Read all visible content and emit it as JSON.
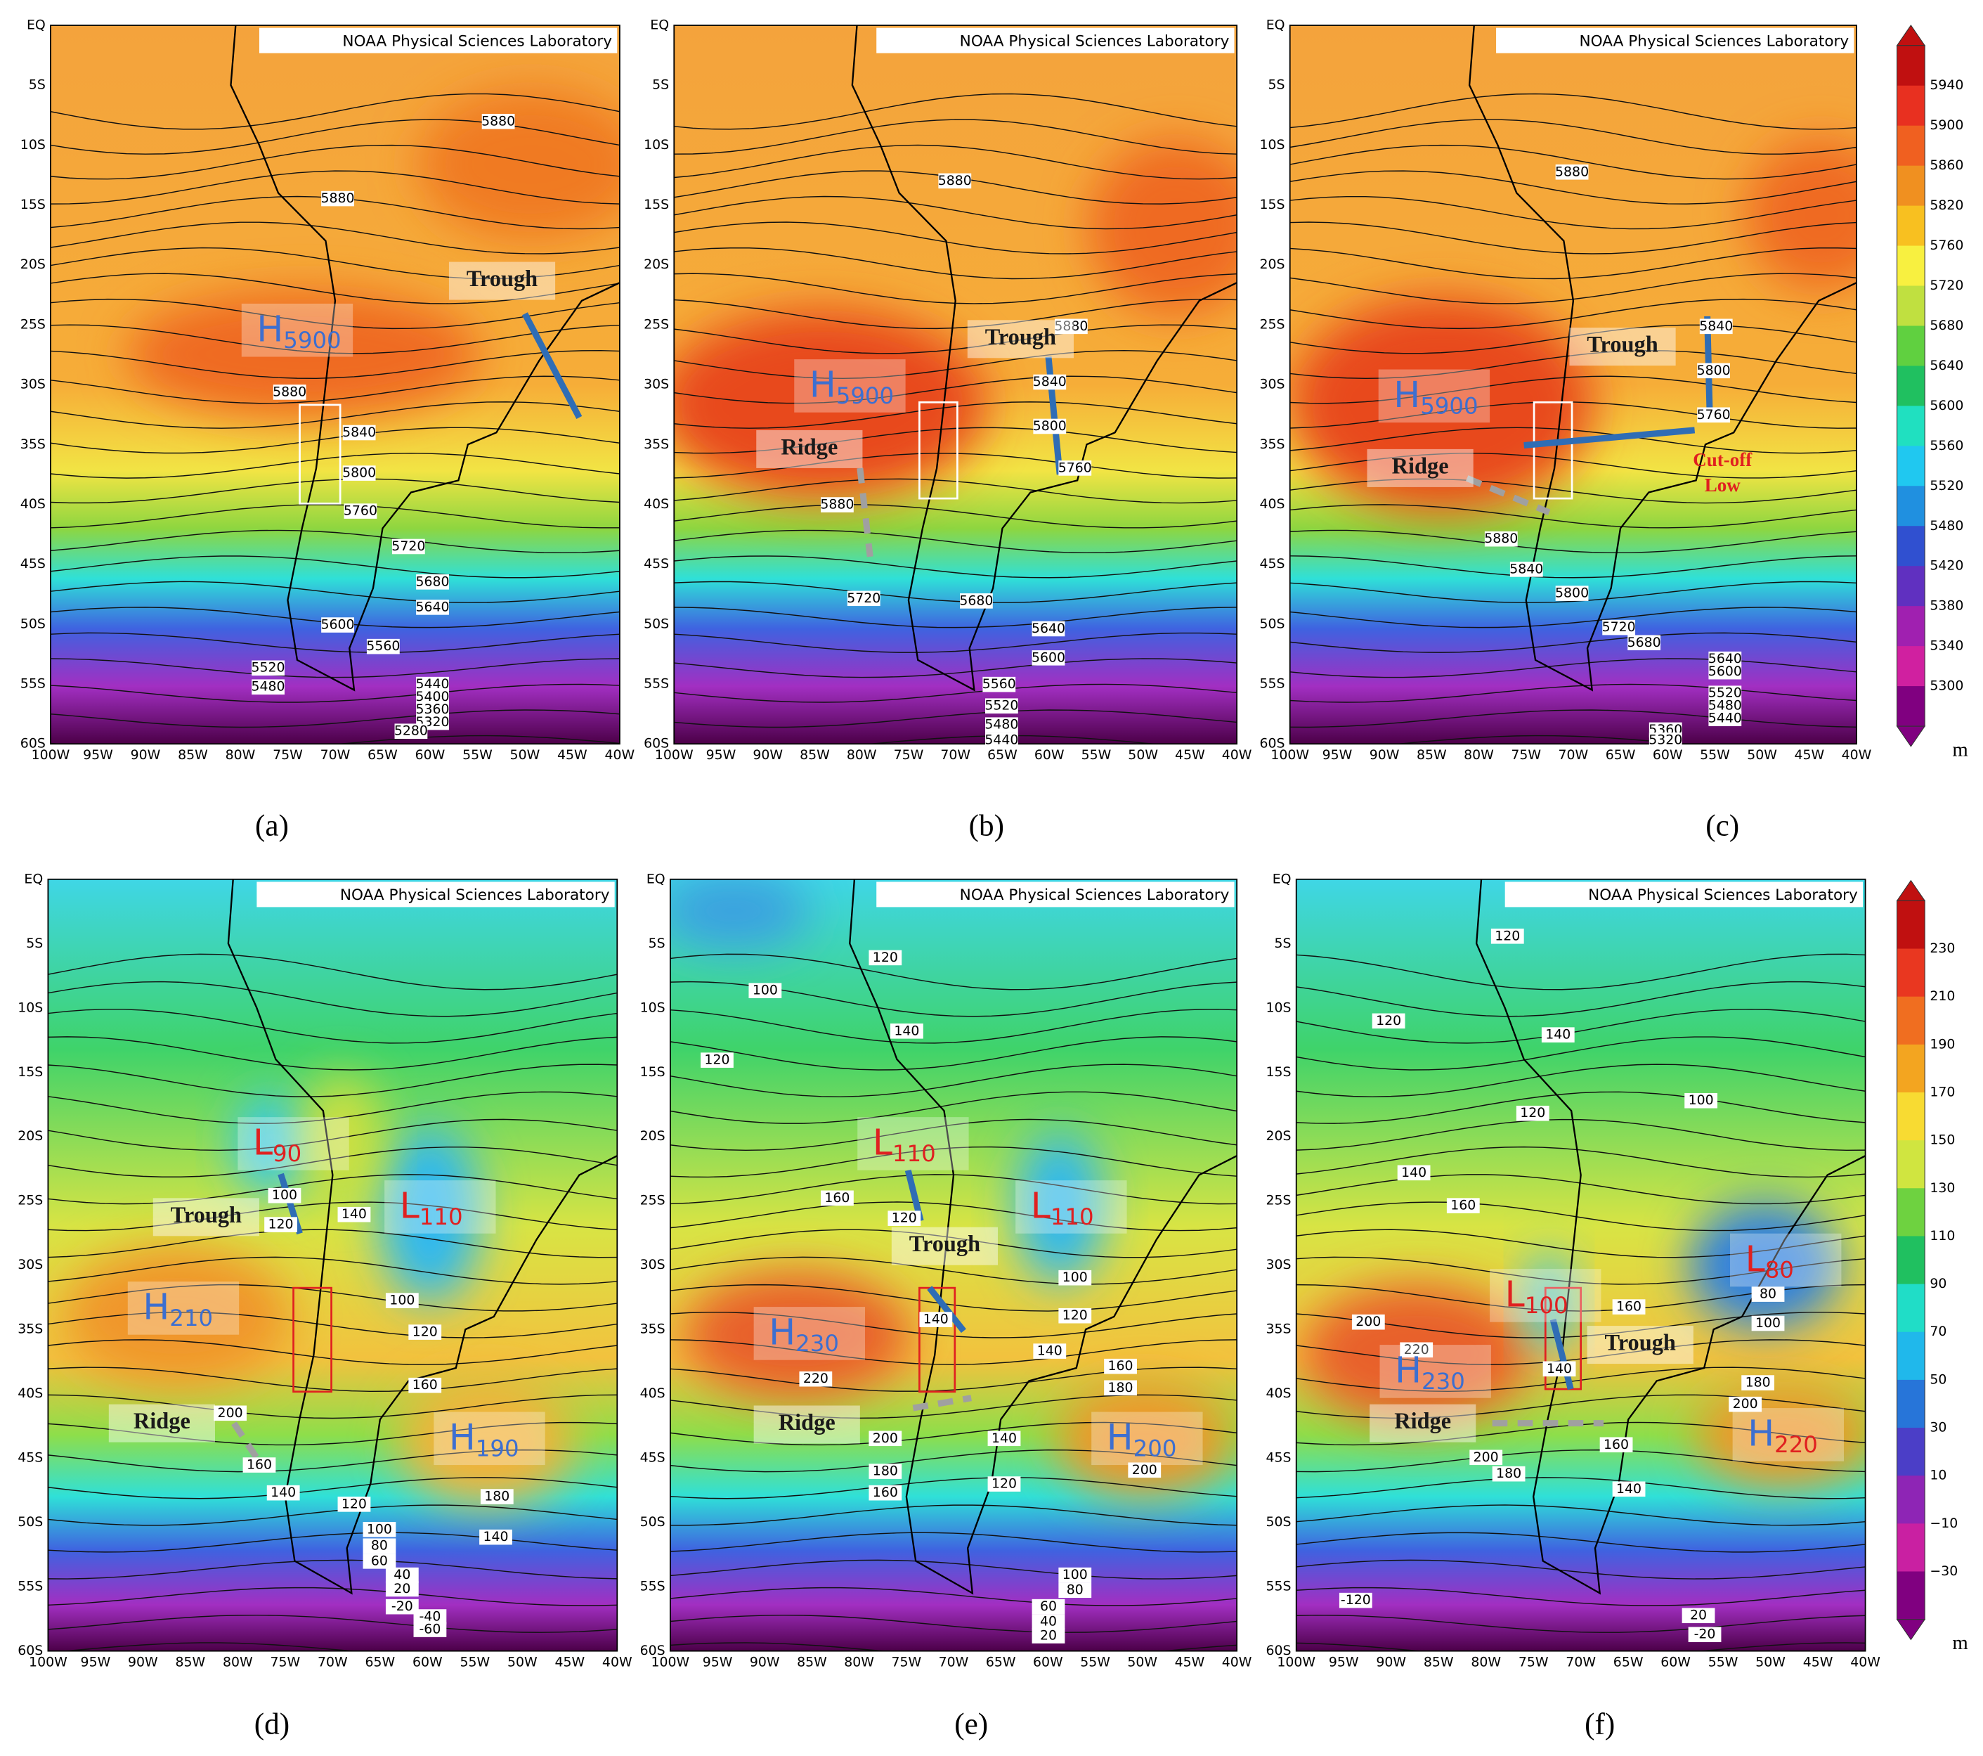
{
  "credit": "NOAA Physical Sciences Laboratory",
  "lat_labels": [
    "EQ",
    "5S",
    "10S",
    "15S",
    "20S",
    "25S",
    "30S",
    "35S",
    "40S",
    "45S",
    "50S",
    "55S",
    "60S"
  ],
  "lon_labels": [
    "100W",
    "95W",
    "90W",
    "85W",
    "80W",
    "75W",
    "70W",
    "65W",
    "60W",
    "55W",
    "50W",
    "45W",
    "40W"
  ],
  "panels": [
    {
      "label": "(a)",
      "annotations": [
        "Trough"
      ],
      "centers": [
        {
          "letter": "H",
          "value": 5900
        }
      ],
      "contour_labels": [
        5880,
        5880,
        5880,
        5840,
        5800,
        5760,
        5720,
        5680,
        5640,
        5600,
        5560,
        5520,
        5480,
        5440,
        5400,
        5360,
        5320,
        5280
      ]
    },
    {
      "label": "(b)",
      "annotations": [
        "Ridge",
        "Trough"
      ],
      "centers": [
        {
          "letter": "H",
          "value": 5900
        }
      ],
      "contour_labels": [
        5880,
        5880,
        5840,
        5800,
        5760,
        5880,
        5720,
        5680,
        5640,
        5600,
        5560,
        5520,
        5480,
        5440
      ]
    },
    {
      "label": "(c)",
      "annotations": [
        "Ridge",
        "Trough",
        "Cut-off",
        "Low"
      ],
      "centers": [
        {
          "letter": "H",
          "value": 5900
        }
      ],
      "contour_labels": [
        5880,
        5840,
        5800,
        5760,
        5880,
        5840,
        5800,
        5720,
        5680,
        5640,
        5600,
        5520,
        5480,
        5440,
        5360,
        5320
      ]
    },
    {
      "label": "(d)",
      "annotations": [
        "Trough",
        "Ridge"
      ],
      "centers": [
        {
          "letter": "L",
          "value": 90
        },
        {
          "letter": "L",
          "value": 110
        },
        {
          "letter": "H",
          "value": 210
        },
        {
          "letter": "H",
          "value": 190
        }
      ],
      "contour_labels": [
        100,
        120,
        140,
        100,
        120,
        160,
        200,
        160,
        140,
        180,
        140,
        120,
        100,
        80,
        60,
        40,
        20,
        -20,
        -40,
        -60
      ]
    },
    {
      "label": "(e)",
      "annotations": [
        "Trough",
        "Ridge"
      ],
      "centers": [
        {
          "letter": "L",
          "value": 110
        },
        {
          "letter": "L",
          "value": 110
        },
        {
          "letter": "H",
          "value": 230
        },
        {
          "letter": "H",
          "value": 200
        }
      ],
      "contour_labels": [
        120,
        100,
        120,
        140,
        160,
        120,
        100,
        120,
        140,
        140,
        220,
        200,
        180,
        160,
        140,
        120,
        160,
        180,
        200,
        100,
        80,
        60,
        40,
        20
      ]
    },
    {
      "label": "(f)",
      "annotations": [
        "Trough",
        "Ridge"
      ],
      "centers": [
        {
          "letter": "L",
          "value": 100
        },
        {
          "letter": "L",
          "value": 80
        },
        {
          "letter": "H",
          "value": 230
        },
        {
          "letter": "H",
          "value": 220
        }
      ],
      "contour_labels": [
        120,
        120,
        140,
        120,
        100,
        140,
        160,
        200,
        220,
        160,
        80,
        100,
        180,
        200,
        200,
        180,
        160,
        140,
        140,
        -120,
        20,
        -20
      ]
    }
  ],
  "colorbars": [
    {
      "labels": [
        5940,
        5900,
        5860,
        5820,
        5760,
        5720,
        5680,
        5640,
        5600,
        5560,
        5520,
        5480,
        5420,
        5380,
        5340,
        5300
      ],
      "unit": "m"
    },
    {
      "labels": [
        "230",
        "210",
        "190",
        "170",
        "150",
        "130",
        "110",
        "90",
        "70",
        "50",
        "30",
        "10",
        "−10",
        "−30"
      ],
      "unit": "m"
    }
  ]
}
